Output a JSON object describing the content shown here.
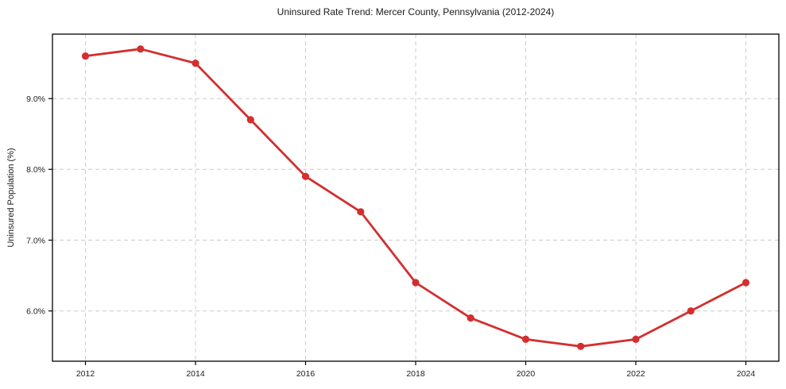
{
  "chart_data": {
    "type": "line",
    "title": "Uninsured Rate Trend: Mercer County, Pennsylvania (2012-2024)",
    "xlabel": "",
    "ylabel": "Uninsured Population (%)",
    "x": [
      2012,
      2013,
      2014,
      2015,
      2016,
      2017,
      2018,
      2019,
      2020,
      2021,
      2022,
      2023,
      2024
    ],
    "values": [
      9.6,
      9.7,
      9.5,
      8.7,
      7.9,
      7.4,
      6.4,
      5.9,
      5.6,
      5.5,
      5.6,
      6.0,
      6.4
    ],
    "x_ticks": [
      2012,
      2014,
      2016,
      2018,
      2020,
      2022,
      2024
    ],
    "x_tick_labels": [
      "2012",
      "2014",
      "2016",
      "2018",
      "2020",
      "2022",
      "2024"
    ],
    "y_ticks": [
      6.0,
      7.0,
      8.0,
      9.0
    ],
    "y_tick_labels": [
      "6.0%",
      "7.0%",
      "8.0%",
      "9.0%"
    ],
    "xlim": [
      2011.4,
      2024.6
    ],
    "ylim": [
      5.29,
      9.91
    ],
    "grid": true,
    "grid_style": "dashed",
    "legend": "none",
    "line_color": "#d32f2f",
    "marker": "circle",
    "grid_color": "#cccccc",
    "spine_color": "#000000",
    "tick_label_color": "#222222"
  }
}
